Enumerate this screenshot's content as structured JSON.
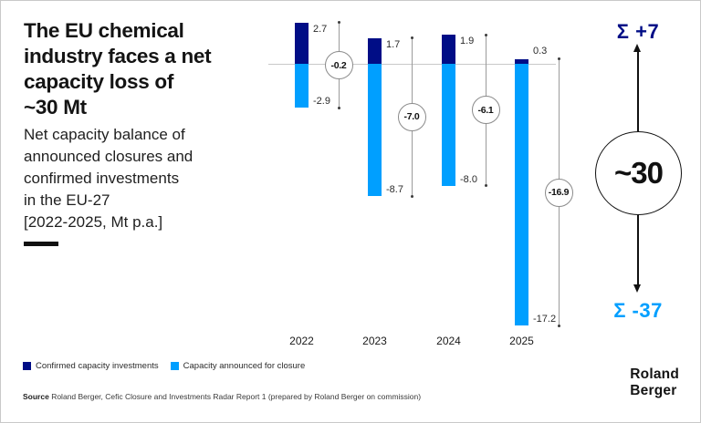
{
  "header": {
    "title_lines": [
      "The EU chemical",
      "industry faces a net",
      "capacity loss of",
      "~30 Mt"
    ],
    "subtitle_lines": [
      "Net capacity balance of",
      "announced closures and",
      "confirmed investments",
      "in the EU-27",
      "[2022-2025, Mt p.a.]"
    ]
  },
  "chart_data": {
    "type": "bar",
    "title": "Net capacity balance of announced closures and confirmed investments in the EU-27 [2022-2025, Mt p.a.]",
    "categories": [
      "2022",
      "2023",
      "2024",
      "2025"
    ],
    "series": [
      {
        "name": "Confirmed capacity investments",
        "color": "#000d86",
        "values": [
          2.7,
          1.7,
          1.9,
          0.3
        ],
        "labels": [
          "2.7",
          "1.7",
          "1.9",
          "0.3"
        ]
      },
      {
        "name": "Capacity announced for closure",
        "color": "#009fff",
        "values": [
          -2.9,
          -8.7,
          -8.0,
          -17.2
        ],
        "labels": [
          "-2.9",
          "-8.7",
          "-8.0",
          "-17.2"
        ]
      }
    ],
    "net": {
      "values": [
        -0.2,
        -7.0,
        -6.1,
        -16.9
      ],
      "labels": [
        "-0.2",
        "-7.0",
        "-6.1",
        "-16.9"
      ]
    },
    "ylim": [
      -18,
      3
    ],
    "unit": "Mt p.a.",
    "grid": false,
    "legend_position": "bottom"
  },
  "summary": {
    "total_positive": "Σ +7",
    "total_negative": "Σ -37",
    "net_total": "~30",
    "positive_color": "#000d86",
    "negative_color": "#009fff"
  },
  "source": {
    "label": "Source",
    "text": " Roland Berger, Cefic Closure and Investments Radar Report 1 (prepared by Roland Berger on commission)"
  },
  "logo": {
    "lines": [
      "Roland",
      "Berger"
    ]
  }
}
